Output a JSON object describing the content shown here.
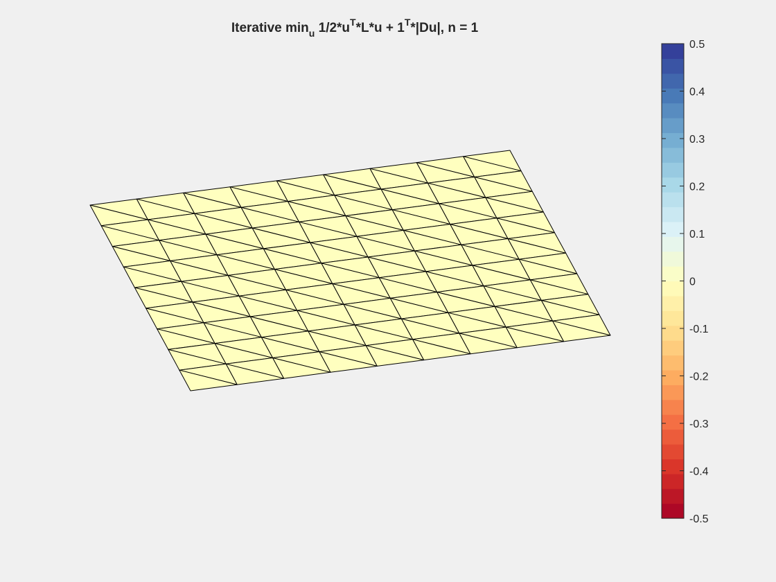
{
  "chart_data": {
    "type": "surface-mesh",
    "title": {
      "main": "Iterative min",
      "sub_u": "u",
      "part2": " 1/2*u",
      "sup_T1": "T",
      "part3": "*L*u + 1",
      "sup_T2": "T",
      "part4": "*|Du|,  n = 1"
    },
    "mesh": {
      "rows": 9,
      "cols": 9,
      "z_value": 0,
      "face_color": "#ffffbf",
      "edge_color": "#000000"
    },
    "colorbar": {
      "limits": [
        -0.5,
        0.5
      ],
      "levels": 32,
      "ticks": [
        0.5,
        0.4,
        0.3,
        0.2,
        0.1,
        0,
        -0.1,
        -0.2,
        -0.3,
        -0.4,
        -0.5
      ],
      "tick_labels": [
        "0.5",
        "0.4",
        "0.3",
        "0.2",
        "0.1",
        "0",
        "-0.1",
        "-0.2",
        "-0.3",
        "-0.4",
        "-0.5"
      ],
      "colormap_stops": [
        "#a50026",
        "#d73027",
        "#f46d43",
        "#fdae61",
        "#fee090",
        "#ffffbf",
        "#e0f3f8",
        "#abd9e9",
        "#74add1",
        "#4575b4",
        "#313695"
      ]
    }
  }
}
